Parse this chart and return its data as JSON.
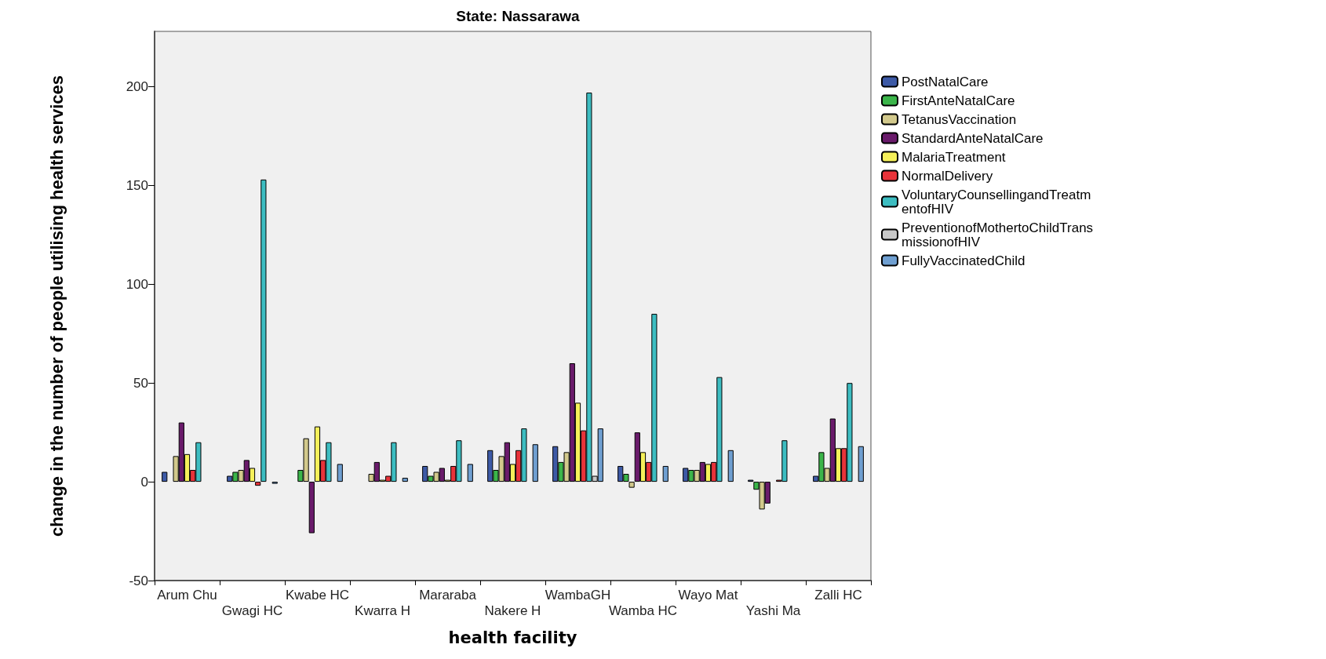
{
  "chart_data": {
    "type": "bar",
    "title": "State: Nassarawa",
    "xlabel": "health facility",
    "ylabel": "change in the number of people utilising health services",
    "categories": [
      "Arum Chu",
      "Gwagi HC",
      "Kwabe HC",
      "Kwarra H",
      "Mararaba",
      "Nakere H",
      "WambaGH",
      "Wamba HC",
      "Wayo Mat",
      "Yashi Ma",
      "Zalli HC"
    ],
    "series": [
      {
        "name": "PostNatalCare",
        "color": "#3d5aa6",
        "values": [
          5,
          3,
          0,
          0,
          8,
          16,
          18,
          8,
          7,
          1,
          3
        ]
      },
      {
        "name": "FirstAnteNatalCare",
        "color": "#3bb54a",
        "values": [
          0,
          5,
          6,
          0,
          3,
          6,
          10,
          4,
          6,
          -4,
          15
        ]
      },
      {
        "name": "TetanusVaccination",
        "color": "#d2c98c",
        "values": [
          13,
          6,
          22,
          4,
          5,
          13,
          15,
          -3,
          6,
          -14,
          7
        ]
      },
      {
        "name": "StandardAnteNatalCare",
        "color": "#6a1b6b",
        "values": [
          30,
          11,
          -26,
          10,
          7,
          20,
          60,
          25,
          10,
          -11,
          32
        ]
      },
      {
        "name": "MalariaTreatment",
        "color": "#f5f05a",
        "values": [
          14,
          7,
          28,
          1,
          1,
          9,
          40,
          15,
          9,
          0,
          17
        ]
      },
      {
        "name": "NormalDelivery",
        "color": "#e8333a",
        "values": [
          6,
          -2,
          11,
          3,
          8,
          16,
          26,
          10,
          10,
          1,
          17
        ]
      },
      {
        "name": "VoluntaryCounsellingandTreatmentofHIV",
        "color": "#3dbdc1",
        "values": [
          20,
          153,
          20,
          20,
          21,
          27,
          197,
          85,
          53,
          21,
          50
        ]
      },
      {
        "name": "PreventionofMothertoChildTransmissionofHIV",
        "color": "#c8c8c8",
        "values": [
          0,
          0,
          0,
          0,
          0,
          0,
          3,
          0,
          0,
          0,
          0
        ]
      },
      {
        "name": "FullyVaccinatedChild",
        "color": "#6f9fd1",
        "values": [
          0,
          -1,
          9,
          2,
          9,
          19,
          27,
          8,
          16,
          0,
          18
        ]
      }
    ],
    "ylim": [
      -50,
      228
    ],
    "yticks": [
      -50,
      0,
      50,
      100,
      150,
      200
    ],
    "grid": false,
    "legend": "top right"
  }
}
